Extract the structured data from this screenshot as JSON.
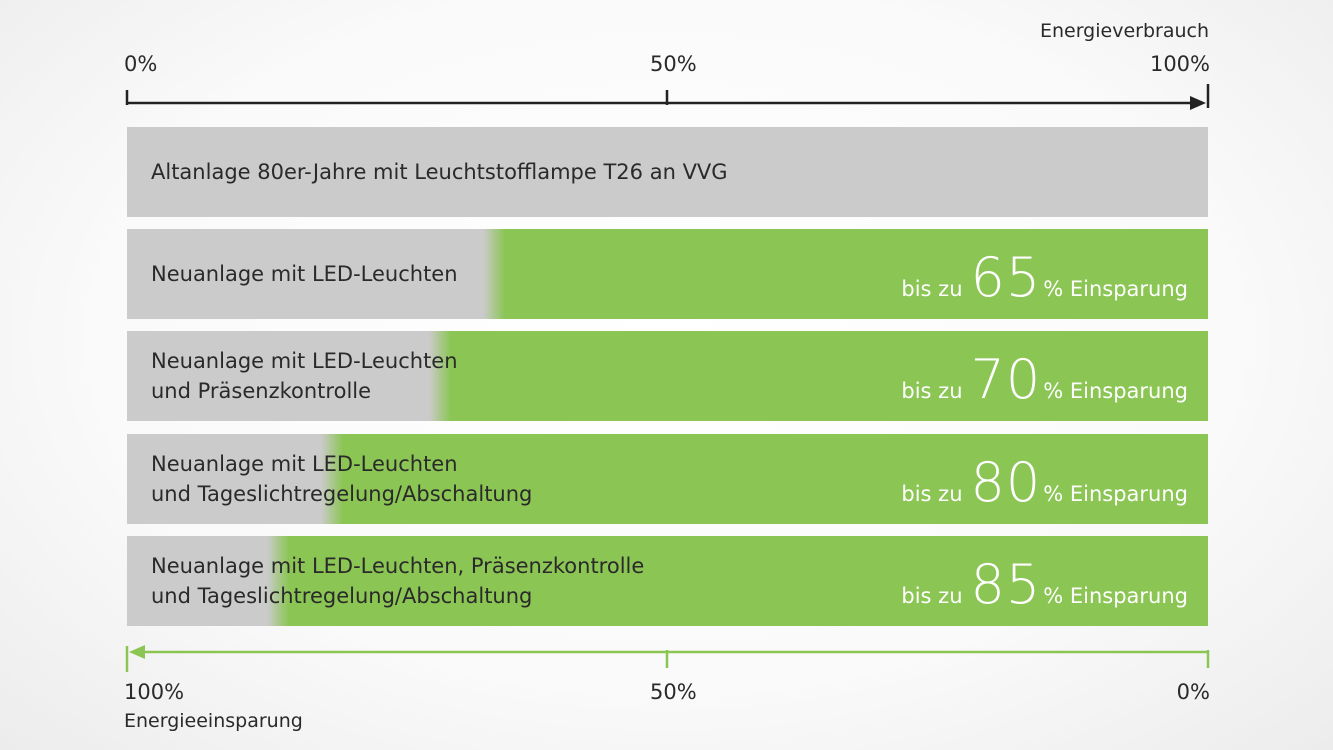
{
  "chart_data": {
    "type": "bar",
    "top_axis": {
      "title": "Energieverbrauch",
      "ticks": [
        "0%",
        "50%",
        "100%"
      ],
      "color": "#222222"
    },
    "bottom_axis": {
      "title": "Energieeinsparung",
      "ticks": [
        "100%",
        "50%",
        "0%"
      ],
      "color": "#8bc554"
    },
    "colors": {
      "consumption": "#cbcbcb",
      "saving": "#8bc554"
    },
    "rows": [
      {
        "label_lines": [
          "Altanlage 80er-Jahre mit Leuchtstofflampe T26 an VVG"
        ],
        "saving_percent": 0,
        "prefix": "",
        "value_text": "",
        "suffix": ""
      },
      {
        "label_lines": [
          "Neuanlage mit LED-Leuchten"
        ],
        "saving_percent": 65,
        "prefix": "bis zu",
        "value_text": "65",
        "suffix": "% Einsparung"
      },
      {
        "label_lines": [
          "Neuanlage mit LED-Leuchten",
          "und Präsenzkontrolle"
        ],
        "saving_percent": 70,
        "prefix": "bis zu",
        "value_text": "70",
        "suffix": "% Einsparung"
      },
      {
        "label_lines": [
          "Neuanlage mit LED-Leuchten",
          "und Tageslichtregelung/Abschaltung"
        ],
        "saving_percent": 80,
        "prefix": "bis zu",
        "value_text": "80",
        "suffix": "% Einsparung"
      },
      {
        "label_lines": [
          "Neuanlage mit LED-Leuchten, Präsenzkontrolle",
          "und Tageslichtregelung/Abschaltung"
        ],
        "saving_percent": 85,
        "prefix": "bis zu",
        "value_text": "85",
        "suffix": "% Einsparung"
      }
    ]
  }
}
